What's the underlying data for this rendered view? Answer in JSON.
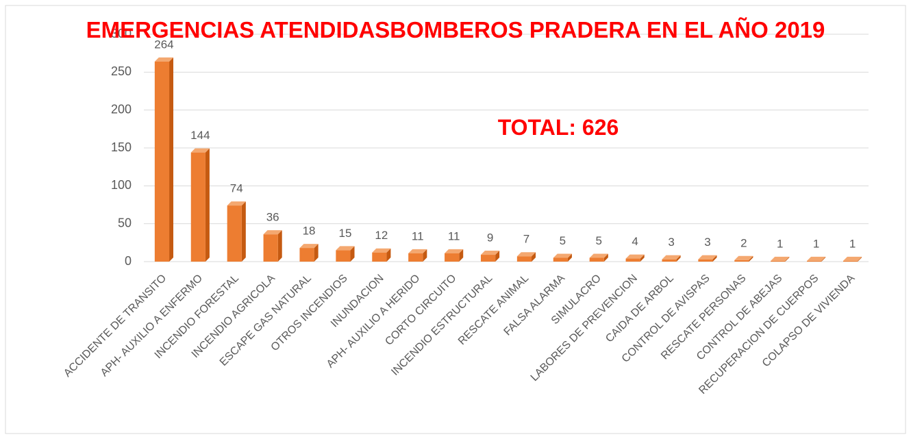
{
  "chart_data": {
    "type": "bar",
    "title": "EMERGENCIAS ATENDIDASBOMBEROS PRADERA EN EL AÑO 2019",
    "annotation": "TOTAL: 626",
    "categories": [
      "ACCIDENTE DE TRANSITO",
      "APH- AUXILIO A ENFERMO",
      "INCENDIO FORESTAL",
      "INCENDIO AGRICOLA",
      "ESCAPE GAS NATURAL",
      "OTROS INCENDIOS",
      "INUNDACION",
      "APH- AUXILIO A HERIDO",
      "CORTO CIRCUITO",
      "INCENDIO ESTRUCTURAL",
      "RESCATE ANIMAL",
      "FALSA ALARMA",
      "SIMULACRO",
      "LABORES DE PREVENCION",
      "CAIDA DE ARBOL",
      "CONTROL DE AVISPAS",
      "RESCATE PERSONAS",
      "CONTROL DE ABEJAS",
      "RECUPERACION DE CUERPOS",
      "COLAPSO DE VIVIENDA"
    ],
    "values": [
      264,
      144,
      74,
      36,
      18,
      15,
      12,
      11,
      11,
      9,
      7,
      5,
      5,
      4,
      3,
      3,
      2,
      1,
      1,
      1
    ],
    "color": "#ed7d31",
    "ylim": [
      0,
      300
    ],
    "yticks": [
      0,
      50,
      100,
      150,
      200,
      250,
      300
    ],
    "grid": true
  }
}
